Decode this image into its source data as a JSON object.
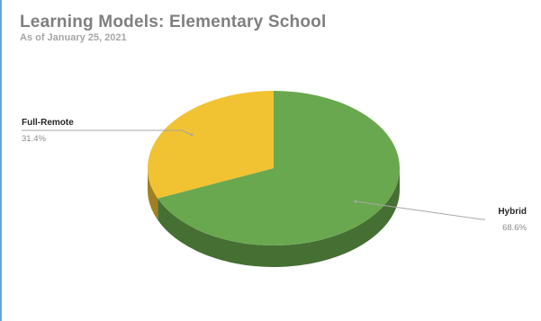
{
  "chart_data": {
    "type": "pie",
    "title": "Learning Models: Elementary School",
    "subtitle": "As of January 25, 2021",
    "slices": [
      {
        "label": "Hybrid",
        "value": 68.6,
        "value_label": "68.6%",
        "color": "#6aa84f"
      },
      {
        "label": "Full-Remote",
        "value": 31.4,
        "value_label": "31.4%",
        "color": "#f1c232"
      }
    ],
    "legend": "none",
    "style": "3d"
  }
}
